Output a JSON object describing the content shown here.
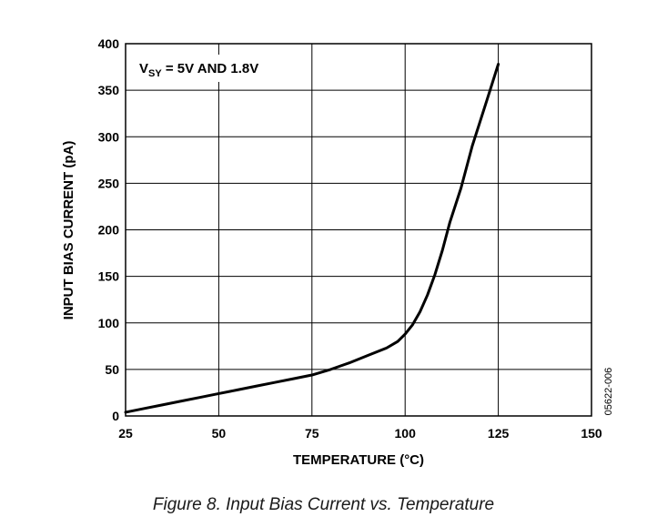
{
  "chart_data": {
    "type": "line",
    "title": "",
    "xlabel": "TEMPERATURE (°C)",
    "ylabel": "INPUT BIAS CURRENT (pA)",
    "xlim": [
      25,
      150
    ],
    "ylim": [
      0,
      400
    ],
    "x_ticks": [
      25,
      50,
      75,
      100,
      125,
      150
    ],
    "y_ticks": [
      0,
      50,
      100,
      150,
      200,
      250,
      300,
      350,
      400
    ],
    "grid": true,
    "annotation": {
      "prefix": "V",
      "subscript": "SY",
      "suffix": " = 5V AND 1.8V"
    },
    "series": [
      {
        "name": "",
        "x": [
          25,
          30,
          35,
          40,
          45,
          50,
          55,
          60,
          65,
          70,
          75,
          80,
          85,
          90,
          95,
          98,
          100,
          102,
          104,
          106,
          108,
          110,
          112,
          115,
          118,
          120,
          122,
          125
        ],
        "y": [
          4,
          8,
          12,
          16,
          20,
          24,
          28,
          32,
          36,
          40,
          44,
          50,
          57,
          65,
          73,
          80,
          88,
          98,
          112,
          130,
          152,
          178,
          208,
          245,
          290,
          315,
          340,
          378
        ]
      }
    ],
    "line_color": "#000000"
  },
  "figure_code": "05622-006",
  "caption": "Figure 8. Input Bias Current  vs. Temperature"
}
